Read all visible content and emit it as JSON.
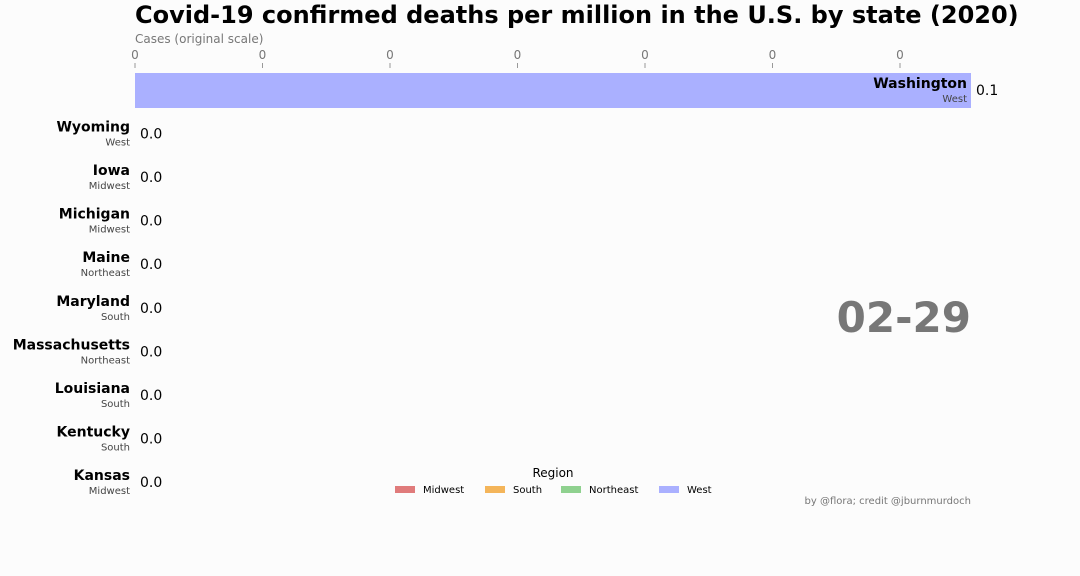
{
  "chart_data": {
    "type": "bar",
    "title": "Covid-19 confirmed deaths per million in the U.S. by state (2020)",
    "xlabel": "Cases (original scale)",
    "x_ticks": [
      "0",
      "0",
      "0",
      "0",
      "0",
      "0",
      "0"
    ],
    "date": "02-29",
    "legend_title": "Region",
    "credit": "by @flora; credit @jburnmurdoch",
    "regions": [
      {
        "name": "Midwest",
        "color": "#e07b7b"
      },
      {
        "name": "South",
        "color": "#f4b55a"
      },
      {
        "name": "Northeast",
        "color": "#8fd18f"
      },
      {
        "name": "West",
        "color": "#aab0ff"
      }
    ],
    "categories": [
      "Washington",
      "Wyoming",
      "Iowa",
      "Michigan",
      "Maine",
      "Maryland",
      "Massachusetts",
      "Louisiana",
      "Kentucky",
      "Kansas"
    ],
    "bars": [
      {
        "state": "Washington",
        "region": "West",
        "value": 0.1,
        "value_label": "0.1"
      },
      {
        "state": "Wyoming",
        "region": "West",
        "value": 0.0,
        "value_label": "0.0"
      },
      {
        "state": "Iowa",
        "region": "Midwest",
        "value": 0.0,
        "value_label": "0.0"
      },
      {
        "state": "Michigan",
        "region": "Midwest",
        "value": 0.0,
        "value_label": "0.0"
      },
      {
        "state": "Maine",
        "region": "Northeast",
        "value": 0.0,
        "value_label": "0.0"
      },
      {
        "state": "Maryland",
        "region": "South",
        "value": 0.0,
        "value_label": "0.0"
      },
      {
        "state": "Massachusetts",
        "region": "Northeast",
        "value": 0.0,
        "value_label": "0.0"
      },
      {
        "state": "Louisiana",
        "region": "South",
        "value": 0.0,
        "value_label": "0.0"
      },
      {
        "state": "Kentucky",
        "region": "South",
        "value": 0.0,
        "value_label": "0.0"
      },
      {
        "state": "Kansas",
        "region": "Midwest",
        "value": 0.0,
        "value_label": "0.0"
      }
    ],
    "xlim": [
      0,
      0.1
    ]
  }
}
